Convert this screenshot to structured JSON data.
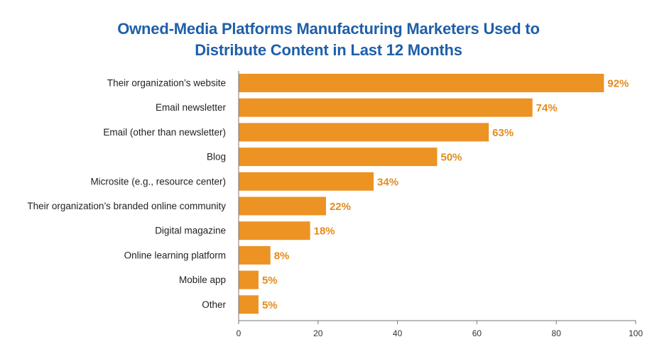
{
  "chart_data": {
    "type": "bar",
    "orientation": "horizontal",
    "title_lines": [
      "Owned-Media Platforms Manufacturing Marketers Used to",
      "Distribute Content in Last 12 Months"
    ],
    "categories": [
      "Their organization’s website",
      "Email newsletter",
      "Email (other than newsletter)",
      "Blog",
      "Microsite (e.g., resource center)",
      "Their organization’s branded online community",
      "Digital magazine",
      "Online learning platform",
      "Mobile app",
      "Other"
    ],
    "values": [
      92,
      74,
      63,
      50,
      34,
      22,
      18,
      8,
      5,
      5
    ],
    "value_labels": [
      "92%",
      "74%",
      "63%",
      "50%",
      "34%",
      "22%",
      "18%",
      "8%",
      "5%",
      "5%"
    ],
    "xlim": [
      0,
      100
    ],
    "xticks": [
      0,
      20,
      40,
      60,
      80,
      100
    ],
    "xtick_labels": [
      "0",
      "20",
      "40",
      "60",
      "80",
      "100"
    ],
    "xlabel": "",
    "ylabel": "",
    "grid": false,
    "legend": "none",
    "colors": {
      "bar": "#ec9324",
      "value_label": "#e38b1d",
      "title": "#1f5fa8",
      "axis": "#777777"
    }
  }
}
